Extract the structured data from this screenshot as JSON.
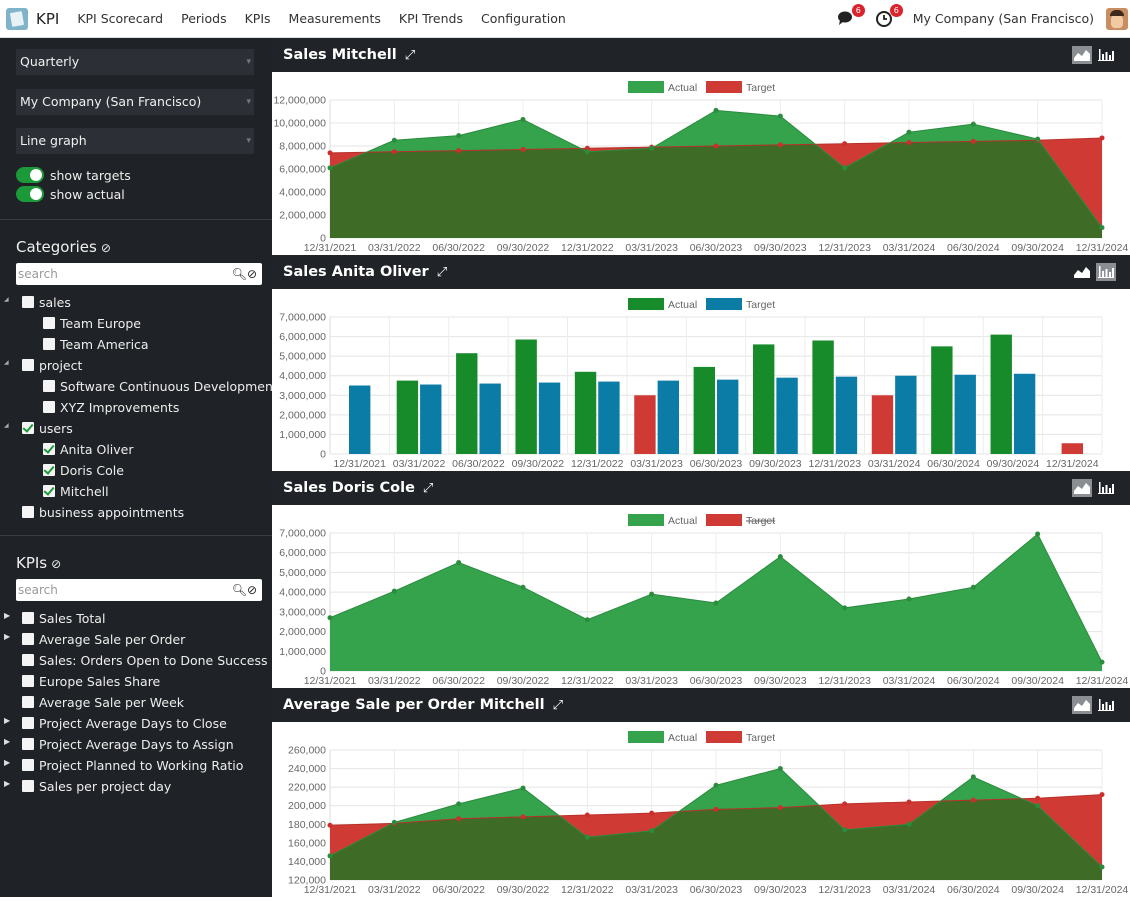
{
  "topbar": {
    "app_name": "KPI",
    "menu": [
      "KPI Scorecard",
      "Periods",
      "KPIs",
      "Measurements",
      "KPI Trends",
      "Configuration"
    ],
    "messages_badge": "6",
    "activities_badge": "6",
    "company": "My Company (San Francisco)",
    "icons": [
      "app-logo-icon",
      "chat-icon",
      "clock-icon",
      "avatar-icon"
    ]
  },
  "sidebar": {
    "period_select": "Quarterly",
    "company_select": "My Company (San Francisco)",
    "chart_type_select": "Line graph",
    "show_targets_label": "show targets",
    "show_actual_label": "show actual",
    "show_targets": true,
    "show_actual": true,
    "categories_heading": "Categories",
    "categories_search_placeholder": "search",
    "categories": [
      {
        "label": "sales",
        "level": 0,
        "checked": false,
        "expanded": true
      },
      {
        "label": "Team Europe",
        "level": 1,
        "checked": false
      },
      {
        "label": "Team America",
        "level": 1,
        "checked": false
      },
      {
        "label": "project",
        "level": 0,
        "checked": false,
        "expanded": true
      },
      {
        "label": "Software Continuous Development",
        "level": 1,
        "checked": false
      },
      {
        "label": "XYZ Improvements",
        "level": 1,
        "checked": false
      },
      {
        "label": "users",
        "level": 0,
        "checked": true,
        "expanded": true
      },
      {
        "label": "Anita Oliver",
        "level": 1,
        "checked": true
      },
      {
        "label": "Doris Cole",
        "level": 1,
        "checked": true
      },
      {
        "label": "Mitchell",
        "level": 1,
        "checked": true
      },
      {
        "label": "business appointments",
        "level": 0,
        "checked": false
      }
    ],
    "kpis_heading": "KPIs",
    "kpis_search_placeholder": "search",
    "kpis": [
      {
        "label": "Sales Total",
        "expandable": true
      },
      {
        "label": "Average Sale per Order",
        "expandable": true
      },
      {
        "label": "Sales: Orders Open to Done Success Ratio",
        "expandable": false
      },
      {
        "label": "Europe Sales Share",
        "expandable": false
      },
      {
        "label": "Average Sale per Week",
        "expandable": false
      },
      {
        "label": "Project Average Days to Close",
        "expandable": true
      },
      {
        "label": "Project Average Days to Assign",
        "expandable": true
      },
      {
        "label": "Project Planned to Working Ratio",
        "expandable": true
      },
      {
        "label": "Sales per project day",
        "expandable": true
      }
    ]
  },
  "colors": {
    "actual_area": "#34a34c",
    "target_area": "#d03a34",
    "overlap_area": "#3e6b26",
    "actual_bar": "#178a2a",
    "target_bar": "#0b7ca5",
    "below_target_bar": "#d03a34"
  },
  "chart_data": [
    {
      "title": "Sales Mitchell",
      "type": "area",
      "active_view": "area",
      "legend": [
        "Actual",
        "Target"
      ],
      "target_hidden": false,
      "categories": [
        "12/31/2021",
        "03/31/2022",
        "06/30/2022",
        "09/30/2022",
        "12/31/2022",
        "03/31/2023",
        "06/30/2023",
        "09/30/2023",
        "12/31/2023",
        "03/31/2024",
        "06/30/2024",
        "09/30/2024",
        "12/31/2024"
      ],
      "yticks": [
        "12,000,000",
        "10,000,000",
        "8,000,000",
        "6,000,000",
        "4,000,000",
        "2,000,000",
        "0"
      ],
      "ylim": [
        0,
        12000000
      ],
      "series": [
        {
          "name": "Actual",
          "values": [
            6100000,
            8500000,
            8900000,
            10300000,
            7500000,
            7800000,
            11100000,
            10600000,
            6100000,
            9200000,
            9900000,
            8600000,
            900000
          ]
        },
        {
          "name": "Target",
          "values": [
            7400000,
            7500000,
            7600000,
            7700000,
            7800000,
            7900000,
            8000000,
            8100000,
            8200000,
            8300000,
            8400000,
            8500000,
            8700000
          ]
        }
      ]
    },
    {
      "title": "Sales Anita Oliver",
      "type": "bar",
      "active_view": "bar",
      "legend": [
        "Actual",
        "Target"
      ],
      "target_hidden": false,
      "categories": [
        "12/31/2021",
        "03/31/2022",
        "06/30/2022",
        "09/30/2022",
        "12/31/2022",
        "03/31/2023",
        "06/30/2023",
        "09/30/2023",
        "12/31/2023",
        "03/31/2024",
        "06/30/2024",
        "09/30/2024",
        "12/31/2024"
      ],
      "yticks": [
        "7,000,000",
        "6,000,000",
        "5,000,000",
        "4,000,000",
        "3,000,000",
        "2,000,000",
        "1,000,000",
        "0"
      ],
      "ylim": [
        0,
        7000000
      ],
      "series": [
        {
          "name": "Actual",
          "values": [
            null,
            3750000,
            5150000,
            5850000,
            4200000,
            3000000,
            4450000,
            5600000,
            5800000,
            3000000,
            5500000,
            6100000,
            550000
          ]
        },
        {
          "name": "Target",
          "values": [
            3500000,
            3550000,
            3600000,
            3650000,
            3700000,
            3750000,
            3800000,
            3900000,
            3950000,
            4000000,
            4050000,
            4100000,
            null
          ]
        }
      ]
    },
    {
      "title": "Sales Doris Cole",
      "type": "area",
      "active_view": "area",
      "legend": [
        "Actual",
        "Target"
      ],
      "target_hidden": true,
      "categories": [
        "12/31/2021",
        "03/31/2022",
        "06/30/2022",
        "09/30/2022",
        "12/31/2022",
        "03/31/2023",
        "06/30/2023",
        "09/30/2023",
        "12/31/2023",
        "03/31/2024",
        "06/30/2024",
        "09/30/2024",
        "12/31/2024"
      ],
      "yticks": [
        "7,000,000",
        "6,000,000",
        "5,000,000",
        "4,000,000",
        "3,000,000",
        "2,000,000",
        "1,000,000",
        "0"
      ],
      "ylim": [
        0,
        7000000
      ],
      "series": [
        {
          "name": "Actual",
          "values": [
            2700000,
            4050000,
            5500000,
            4250000,
            2600000,
            3900000,
            3450000,
            5800000,
            3200000,
            3650000,
            4250000,
            6950000,
            450000
          ]
        }
      ]
    },
    {
      "title": "Average Sale per Order Mitchell",
      "type": "area",
      "active_view": "area",
      "legend": [
        "Actual",
        "Target"
      ],
      "target_hidden": false,
      "categories": [
        "12/31/2021",
        "03/31/2022",
        "06/30/2022",
        "09/30/2022",
        "12/31/2022",
        "03/31/2023",
        "06/30/2023",
        "09/30/2023",
        "12/31/2023",
        "03/31/2024",
        "06/30/2024",
        "09/30/2024",
        "12/31/2024"
      ],
      "yticks": [
        "260,000",
        "240,000",
        "220,000",
        "200,000",
        "180,000",
        "160,000",
        "140,000",
        "120,000"
      ],
      "ylim": [
        120000,
        260000
      ],
      "series": [
        {
          "name": "Actual",
          "values": [
            146000,
            182000,
            202000,
            219000,
            166000,
            173000,
            222000,
            240000,
            174000,
            180000,
            231000,
            200000,
            134000
          ]
        },
        {
          "name": "Target",
          "values": [
            179000,
            181000,
            186000,
            188000,
            190000,
            192000,
            196000,
            198000,
            202000,
            204000,
            206000,
            208000,
            212000
          ]
        }
      ]
    }
  ]
}
